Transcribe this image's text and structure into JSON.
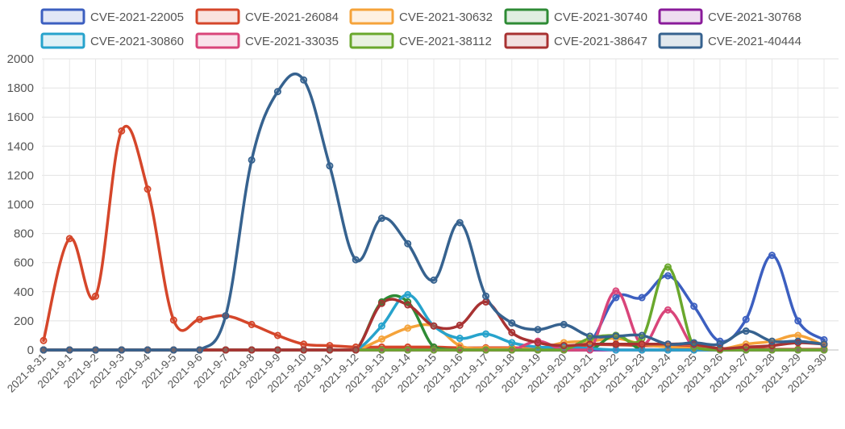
{
  "chart_data": {
    "type": "line",
    "title": "",
    "xlabel": "",
    "ylabel": "",
    "ylim": [
      0,
      2000
    ],
    "yticks": [
      0,
      200,
      400,
      600,
      800,
      1000,
      1200,
      1400,
      1600,
      1800,
      2000
    ],
    "grid": true,
    "legend_position": "top",
    "categories": [
      "2021-8-31",
      "2021-9-1",
      "2021-9-2",
      "2021-9-3",
      "2021-9-4",
      "2021-9-5",
      "2021-9-6",
      "2021-9-7",
      "2021-9-8",
      "2021-9-9",
      "2021-9-10",
      "2021-9-11",
      "2021-9-12",
      "2021-9-13",
      "2021-9-14",
      "2021-9-15",
      "2021-9-16",
      "2021-9-17",
      "2021-9-18",
      "2021-9-19",
      "2021-9-20",
      "2021-9-21",
      "2021-9-22",
      "2021-9-23",
      "2021-9-24",
      "2021-9-25",
      "2021-9-26",
      "2021-9-27",
      "2021-9-28",
      "2021-9-29",
      "2021-9-30"
    ],
    "series": [
      {
        "name": "CVE-2021-22005",
        "color": "#3c5fc0",
        "values": [
          0,
          0,
          0,
          0,
          0,
          0,
          0,
          0,
          0,
          0,
          0,
          0,
          0,
          0,
          0,
          0,
          0,
          0,
          0,
          0,
          0,
          50,
          360,
          360,
          510,
          300,
          60,
          210,
          650,
          200,
          70
        ]
      },
      {
        "name": "CVE-2021-26084",
        "color": "#d5462a",
        "values": [
          65,
          765,
          370,
          1505,
          1105,
          205,
          210,
          235,
          175,
          100,
          40,
          30,
          20,
          20,
          20,
          20,
          15,
          15,
          15,
          10,
          10,
          35,
          35,
          30,
          25,
          20,
          10,
          10,
          5,
          5,
          5
        ]
      },
      {
        "name": "CVE-2021-30632",
        "color": "#f5a33a",
        "values": [
          0,
          0,
          0,
          0,
          0,
          0,
          0,
          0,
          0,
          0,
          0,
          0,
          0,
          75,
          150,
          165,
          30,
          10,
          10,
          10,
          50,
          60,
          80,
          40,
          20,
          10,
          5,
          40,
          60,
          100,
          30
        ]
      },
      {
        "name": "CVE-2021-30740",
        "color": "#2e8b35",
        "values": [
          0,
          0,
          0,
          0,
          0,
          0,
          0,
          0,
          0,
          0,
          0,
          0,
          0,
          330,
          330,
          20,
          0,
          0,
          0,
          0,
          0,
          0,
          100,
          0,
          0,
          0,
          0,
          0,
          0,
          0,
          0
        ]
      },
      {
        "name": "CVE-2021-30768",
        "color": "#8a1b9a",
        "values": [
          0,
          0,
          0,
          0,
          0,
          0,
          0,
          0,
          0,
          0,
          0,
          0,
          0,
          0,
          0,
          0,
          0,
          0,
          0,
          0,
          0,
          0,
          0,
          0,
          0,
          0,
          0,
          0,
          0,
          0,
          0
        ]
      },
      {
        "name": "CVE-2021-30860",
        "color": "#27a3cc",
        "values": [
          0,
          0,
          0,
          0,
          0,
          0,
          0,
          0,
          0,
          0,
          0,
          0,
          0,
          165,
          380,
          165,
          80,
          110,
          50,
          20,
          20,
          10,
          0,
          0,
          0,
          0,
          0,
          0,
          0,
          0,
          0
        ]
      },
      {
        "name": "CVE-2021-33035",
        "color": "#d9457a",
        "values": [
          0,
          0,
          0,
          0,
          0,
          0,
          0,
          0,
          0,
          0,
          0,
          0,
          0,
          0,
          0,
          0,
          0,
          0,
          0,
          60,
          0,
          0,
          405,
          40,
          275,
          20,
          0,
          0,
          0,
          0,
          0
        ]
      },
      {
        "name": "CVE-2021-38112",
        "color": "#6aa82d",
        "values": [
          0,
          0,
          0,
          0,
          0,
          0,
          0,
          0,
          0,
          0,
          0,
          0,
          0,
          0,
          0,
          0,
          0,
          0,
          0,
          0,
          0,
          80,
          100,
          80,
          570,
          20,
          0,
          0,
          0,
          0,
          0
        ]
      },
      {
        "name": "CVE-2021-38647",
        "color": "#a83232",
        "values": [
          0,
          0,
          0,
          0,
          0,
          0,
          0,
          0,
          0,
          0,
          0,
          0,
          0,
          320,
          310,
          165,
          170,
          330,
          120,
          50,
          30,
          40,
          40,
          40,
          40,
          40,
          10,
          20,
          30,
          50,
          40
        ]
      },
      {
        "name": "CVE-2021-40444",
        "color": "#36628f",
        "values": [
          0,
          0,
          0,
          0,
          0,
          0,
          0,
          235,
          1305,
          1775,
          1855,
          1265,
          620,
          905,
          730,
          480,
          875,
          370,
          185,
          140,
          175,
          95,
          95,
          100,
          40,
          50,
          40,
          130,
          60,
          60,
          40
        ]
      }
    ]
  }
}
